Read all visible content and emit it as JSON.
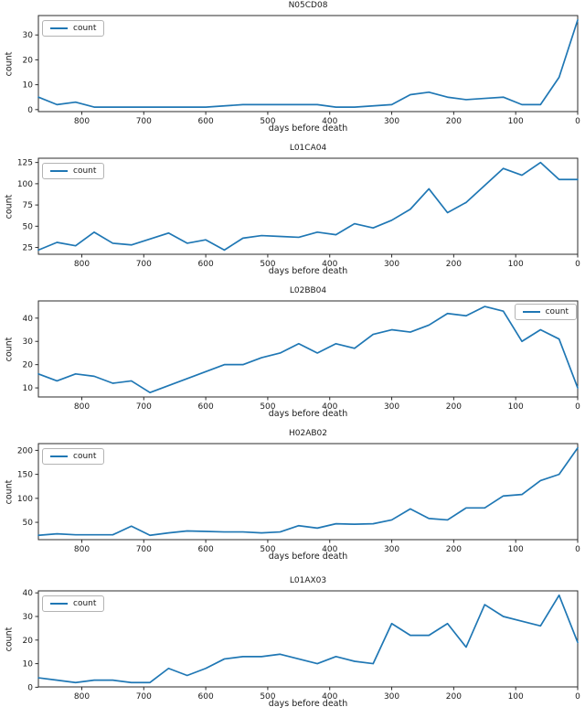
{
  "chart_data": [
    {
      "type": "line",
      "title": "N05CD08",
      "xlabel": "days before death",
      "ylabel": "count",
      "legend": {
        "label": "count",
        "position": "top-left"
      },
      "line_color": "#1f77b4",
      "grid": false,
      "x": [
        870,
        840,
        810,
        780,
        750,
        720,
        690,
        660,
        630,
        600,
        570,
        540,
        510,
        480,
        450,
        420,
        390,
        360,
        330,
        300,
        270,
        240,
        210,
        180,
        150,
        120,
        90,
        60,
        30,
        0
      ],
      "values": [
        5,
        2,
        3,
        1,
        1,
        1,
        1,
        1,
        1,
        1,
        1.5,
        2,
        2,
        2,
        2,
        2,
        1,
        1,
        1.5,
        2,
        6,
        7,
        5,
        4,
        4.5,
        5,
        2,
        2,
        13,
        36
      ],
      "xticks": [
        800,
        700,
        600,
        500,
        400,
        300,
        200,
        100,
        0
      ],
      "yticks": [
        0,
        10,
        20,
        30
      ],
      "xlim": [
        870,
        0
      ],
      "ylim": [
        -0.8,
        37.8
      ]
    },
    {
      "type": "line",
      "title": "L01CA04",
      "xlabel": "days before death",
      "ylabel": "count",
      "legend": {
        "label": "count",
        "position": "top-left"
      },
      "line_color": "#1f77b4",
      "grid": false,
      "x": [
        870,
        840,
        810,
        780,
        750,
        720,
        690,
        660,
        630,
        600,
        570,
        540,
        510,
        480,
        450,
        420,
        390,
        360,
        330,
        300,
        270,
        240,
        210,
        180,
        150,
        120,
        90,
        60,
        30,
        0
      ],
      "values": [
        22,
        31,
        27,
        43,
        30,
        28,
        35,
        42,
        30,
        34,
        22,
        36,
        39,
        38,
        37,
        43,
        40,
        53,
        48,
        57,
        70,
        94,
        66,
        78,
        98,
        118,
        110,
        125,
        105,
        105
      ],
      "xticks": [
        800,
        700,
        600,
        500,
        400,
        300,
        200,
        100,
        0
      ],
      "yticks": [
        25,
        50,
        75,
        100,
        125
      ],
      "xlim": [
        870,
        0
      ],
      "ylim": [
        17,
        130
      ]
    },
    {
      "type": "line",
      "title": "L02BB04",
      "xlabel": "days before death",
      "ylabel": "count",
      "legend": {
        "label": "count",
        "position": "top-right"
      },
      "line_color": "#1f77b4",
      "grid": false,
      "x": [
        870,
        840,
        810,
        780,
        750,
        720,
        690,
        660,
        630,
        600,
        570,
        540,
        510,
        480,
        450,
        420,
        390,
        360,
        330,
        300,
        270,
        240,
        210,
        180,
        150,
        120,
        90,
        60,
        30,
        0
      ],
      "values": [
        16,
        13,
        16,
        15,
        12,
        13,
        8,
        11,
        14,
        17,
        20,
        20,
        23,
        25,
        29,
        25,
        29,
        27,
        33,
        35,
        34,
        37,
        42,
        41,
        45,
        43,
        30,
        35,
        31,
        10
      ],
      "xticks": [
        800,
        700,
        600,
        500,
        400,
        300,
        200,
        100,
        0
      ],
      "yticks": [
        10,
        20,
        30,
        40
      ],
      "xlim": [
        870,
        0
      ],
      "ylim": [
        6.1,
        47.4
      ]
    },
    {
      "type": "line",
      "title": "H02AB02",
      "xlabel": "days before death",
      "ylabel": "count",
      "legend": {
        "label": "count",
        "position": "top-left"
      },
      "line_color": "#1f77b4",
      "grid": false,
      "x": [
        870,
        840,
        810,
        780,
        750,
        720,
        690,
        660,
        630,
        600,
        570,
        540,
        510,
        480,
        450,
        420,
        390,
        360,
        330,
        300,
        270,
        240,
        210,
        180,
        150,
        120,
        90,
        60,
        30,
        0
      ],
      "values": [
        23,
        26,
        24,
        24,
        24,
        42,
        23,
        28,
        32,
        31,
        30,
        30,
        28,
        30,
        43,
        38,
        47,
        46,
        47,
        55,
        78,
        58,
        55,
        80,
        80,
        105,
        108,
        137,
        150,
        205
      ],
      "xticks": [
        800,
        700,
        600,
        500,
        400,
        300,
        200,
        100,
        0
      ],
      "yticks": [
        50,
        100,
        150,
        200
      ],
      "xlim": [
        870,
        0
      ],
      "ylim": [
        13.9,
        214.1
      ]
    },
    {
      "type": "line",
      "title": "L01AX03",
      "xlabel": "days before death",
      "ylabel": "count",
      "legend": {
        "label": "count",
        "position": "top-left"
      },
      "line_color": "#1f77b4",
      "grid": false,
      "x": [
        870,
        840,
        810,
        780,
        750,
        720,
        690,
        660,
        630,
        600,
        570,
        540,
        510,
        480,
        450,
        420,
        390,
        360,
        330,
        300,
        270,
        240,
        210,
        180,
        150,
        120,
        90,
        60,
        30,
        0
      ],
      "values": [
        4,
        3,
        2,
        3,
        3,
        2,
        2,
        8,
        5,
        8,
        12,
        13,
        13,
        14,
        12,
        10,
        13,
        11,
        10,
        27,
        22,
        22,
        27,
        17,
        35,
        30,
        28,
        26,
        39,
        19
      ],
      "xticks": [
        800,
        700,
        600,
        500,
        400,
        300,
        200,
        100,
        0
      ],
      "yticks": [
        0,
        10,
        20,
        30,
        40
      ],
      "xlim": [
        870,
        0
      ],
      "ylim": [
        0.15,
        40.85
      ]
    }
  ]
}
